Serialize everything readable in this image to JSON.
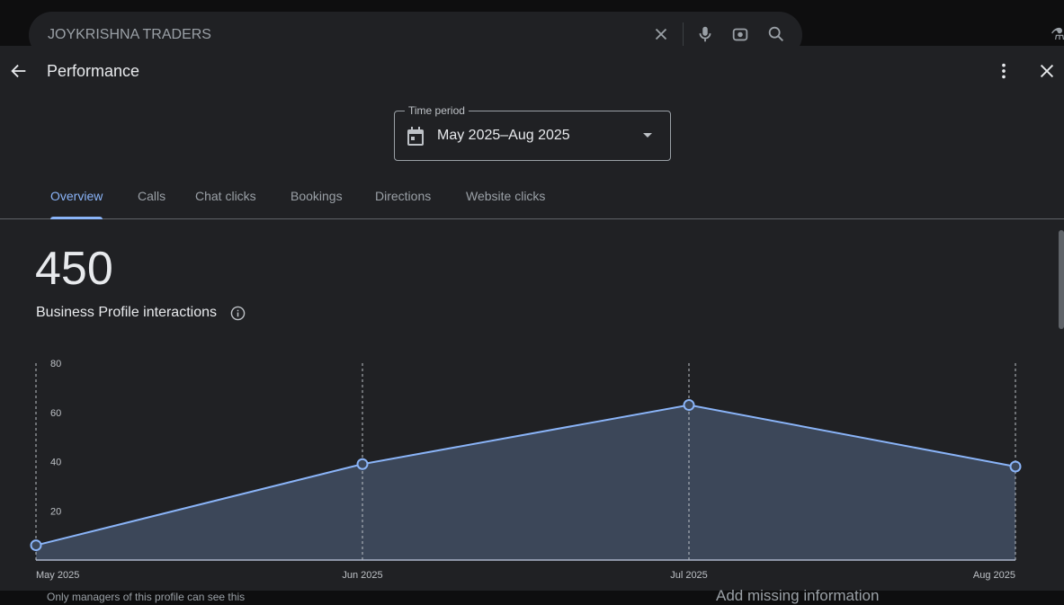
{
  "search": {
    "query": "JOYKRISHNA TRADERS"
  },
  "header": {
    "title": "Performance"
  },
  "time_period": {
    "label": "Time period",
    "value": "May 2025–Aug 2025"
  },
  "tabs": [
    {
      "label": "Overview"
    },
    {
      "label": "Calls"
    },
    {
      "label": "Chat clicks"
    },
    {
      "label": "Bookings"
    },
    {
      "label": "Directions"
    },
    {
      "label": "Website clicks"
    }
  ],
  "summary": {
    "total": "450",
    "label": "Business Profile interactions"
  },
  "footer": {
    "note": "Only managers of this profile can see this",
    "side": "Add missing information"
  },
  "chart_data": {
    "type": "area",
    "categories": [
      "May 2025",
      "Jun 2025",
      "Jul 2025",
      "Aug 2025"
    ],
    "values": [
      6,
      39,
      63,
      38
    ],
    "yticks": [
      "20",
      "40",
      "60",
      "80"
    ],
    "ylim": [
      0,
      80
    ],
    "line_color": "#8ab4f8",
    "fill_color": "#3c4759"
  }
}
